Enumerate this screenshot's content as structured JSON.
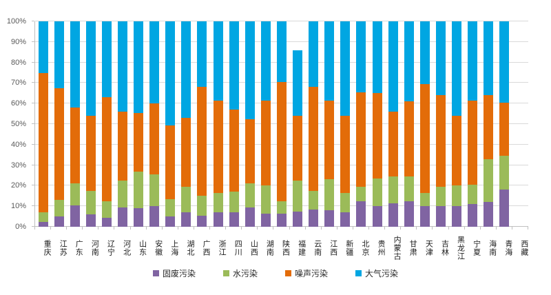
{
  "chart_data": {
    "type": "bar",
    "subtype": "stacked-100-percent",
    "title": "",
    "xlabel": "",
    "ylabel": "",
    "ylim": [
      0,
      100
    ],
    "grid": true,
    "legend_position": "bottom",
    "y_tick_labels": [
      "0%",
      "10%",
      "20%",
      "30%",
      "40%",
      "50%",
      "60%",
      "70%",
      "80%",
      "90%",
      "100%"
    ],
    "categories": [
      "重庆",
      "江苏",
      "广东",
      "河南",
      "辽宁",
      "河北",
      "山东",
      "安徽",
      "上海",
      "湖北",
      "广西",
      "浙江",
      "四川",
      "山西",
      "湖南",
      "陕西",
      "福建",
      "云南",
      "江西",
      "新疆",
      "北京",
      "贵州",
      "内蒙古",
      "甘肃",
      "天津",
      "吉林",
      "黑龙江",
      "宁夏",
      "海南",
      "青海",
      "西藏"
    ],
    "series": [
      {
        "name": "固废污染",
        "key": "solid-waste",
        "color": "#8064A2",
        "values": [
          2.5,
          5,
          10.5,
          6,
          4.5,
          9.5,
          9,
          10,
          5,
          7,
          5.5,
          7,
          7,
          9.5,
          6.5,
          6.5,
          7.5,
          8.5,
          8,
          7,
          12.5,
          10,
          11.5,
          12.5,
          10,
          10,
          10,
          11,
          12,
          18,
          0
        ]
      },
      {
        "name": "水污染",
        "key": "water",
        "color": "#9BBB59",
        "values": [
          4.5,
          8,
          10.5,
          11.5,
          8,
          13,
          18,
          15.5,
          8.5,
          12.5,
          9.5,
          9.5,
          10,
          11.5,
          13.5,
          6,
          15,
          9,
          15,
          9.5,
          7,
          13.5,
          13,
          12,
          6.5,
          9.5,
          10,
          9.5,
          21,
          16.5,
          0
        ]
      },
      {
        "name": "噪声污染",
        "key": "noise",
        "color": "#E36C09",
        "values": [
          68,
          54.5,
          37,
          36.5,
          50.5,
          33.5,
          28.5,
          34.5,
          36,
          33.5,
          53,
          45,
          40,
          31.5,
          41.5,
          58,
          31.5,
          50.5,
          38.5,
          37.5,
          46,
          41.5,
          31.5,
          36.5,
          53,
          44.5,
          34,
          41,
          31,
          26,
          0
        ]
      },
      {
        "name": "大气污染",
        "key": "air",
        "color": "#00A6E2",
        "values": [
          25,
          32.5,
          42,
          46,
          37,
          44,
          44.5,
          40,
          50.5,
          47,
          32,
          38.5,
          43,
          47.5,
          38.5,
          29.5,
          32,
          32,
          38.5,
          46,
          34.5,
          35,
          44,
          39,
          30.5,
          36,
          46,
          38.5,
          36,
          39.5,
          0
        ]
      }
    ],
    "colors": {
      "gridline": "#d9d9d9",
      "axis": "#bfbfbf",
      "y_label_text": "#595959",
      "x_label_text": "#1a1a1a",
      "legend_text": "#262626",
      "background": "#ffffff"
    }
  }
}
